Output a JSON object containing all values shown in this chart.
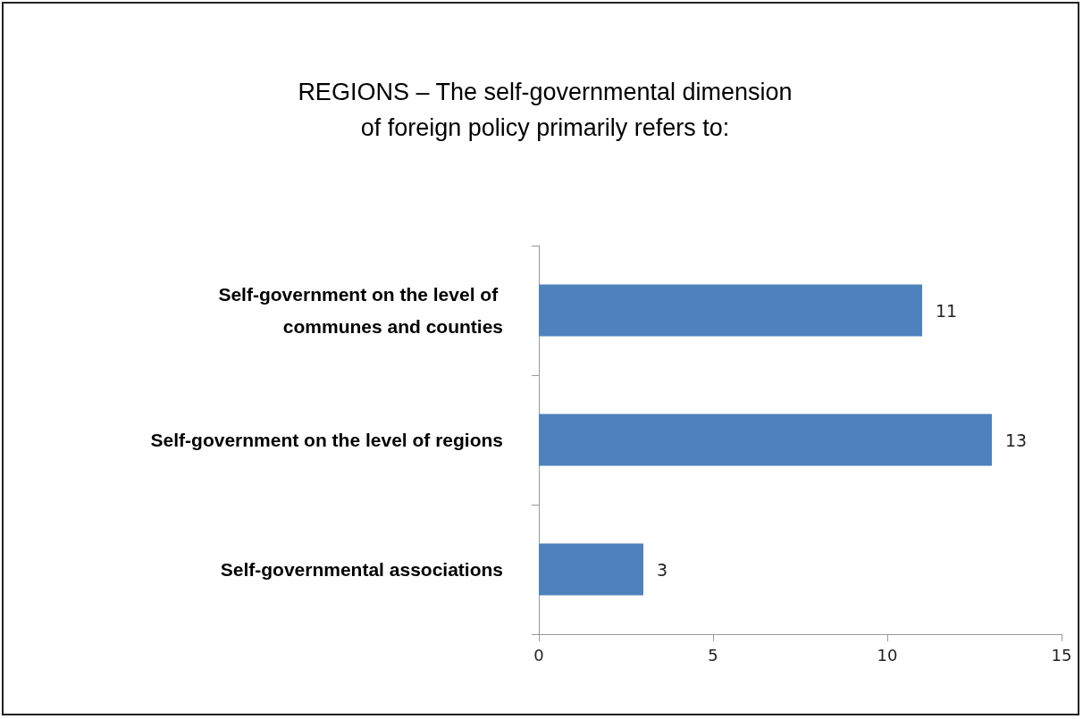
{
  "chart_data": {
    "type": "bar",
    "orientation": "horizontal",
    "title": "REGIONS – The self-governmental dimension\nof foreign policy primarily refers to:",
    "categories": [
      "Self-government on the level of communes and counties",
      "Self-government on the level of regions",
      "Self-governmental associations"
    ],
    "values": [
      11,
      13,
      3
    ],
    "color": "#4f81bd",
    "data_labels": true,
    "xlim": [
      0,
      15
    ],
    "xticks": [
      0,
      5,
      10,
      15
    ],
    "grid": false
  }
}
